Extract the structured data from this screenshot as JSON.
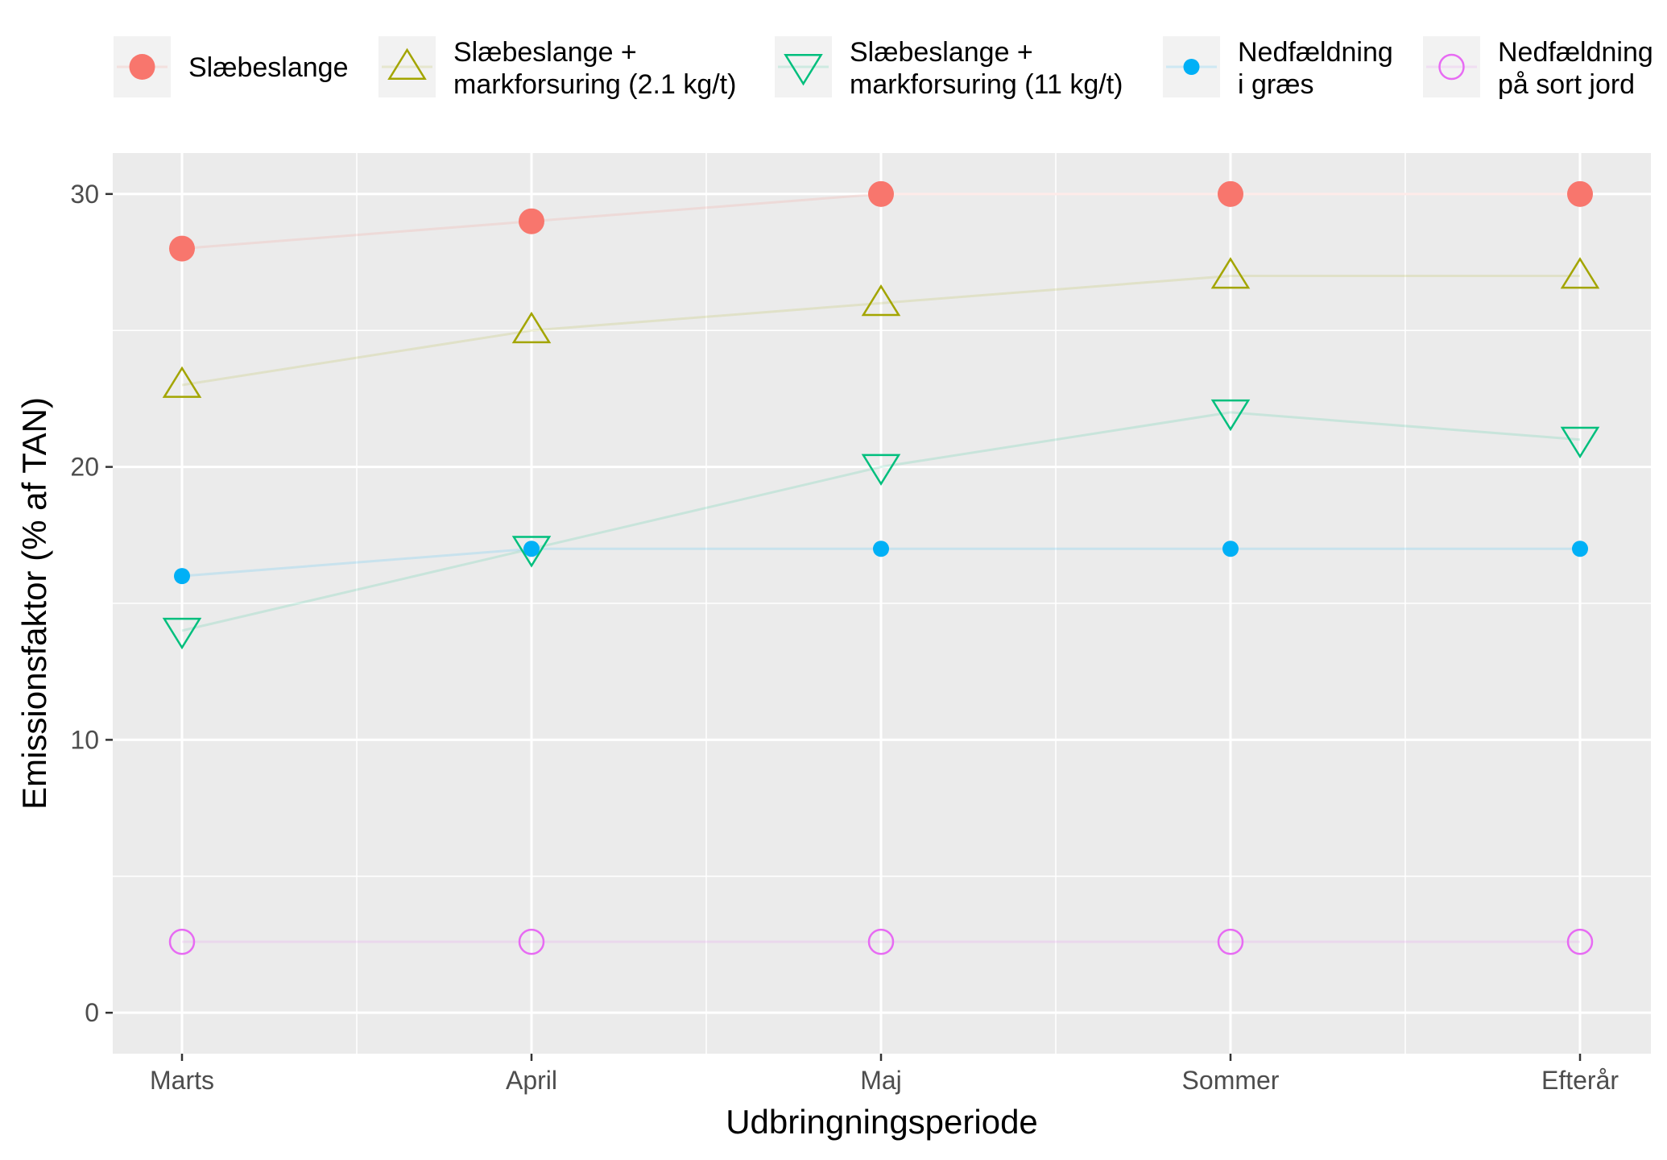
{
  "chart_data": {
    "type": "line",
    "categories": [
      "Marts",
      "April",
      "Maj",
      "Sommer",
      "Efterår"
    ],
    "xlabel": "Udbringningsperiode",
    "ylabel": "Emissionsfaktor (% af TAN)",
    "ylim": [
      -1.5,
      31.5
    ],
    "yticks": [
      0,
      10,
      20,
      30
    ],
    "grid": true,
    "legend_position": "top",
    "series": [
      {
        "name": "Slæbeslange",
        "name_lines": [
          "Slæbeslange"
        ],
        "color": "#F8766D",
        "marker": "filled-circle",
        "values": [
          28,
          29,
          30,
          30,
          30
        ]
      },
      {
        "name": "Slæbeslange + markforsuring (2.1 kg/t)",
        "name_lines": [
          "Slæbeslange +",
          "markforsuring (2.1 kg/t)"
        ],
        "color": "#A3A500",
        "marker": "open-triangle-up",
        "values": [
          23,
          25,
          26,
          27,
          27
        ]
      },
      {
        "name": "Slæbeslange + markforsuring (11 kg/t)",
        "name_lines": [
          "Slæbeslange +",
          "markforsuring (11 kg/t)"
        ],
        "color": "#00BF7D",
        "marker": "open-triangle-down",
        "values": [
          14,
          17,
          20,
          22,
          21
        ]
      },
      {
        "name": "Nedfældning i græs",
        "name_lines": [
          "Nedfældning",
          "i græs"
        ],
        "color": "#00B0F6",
        "marker": "small-filled-circle",
        "values": [
          16,
          17,
          17,
          17,
          17
        ]
      },
      {
        "name": "Nedfældning på sort jord",
        "name_lines": [
          "Nedfældning",
          "på sort jord"
        ],
        "color": "#E76BF3",
        "marker": "open-circle",
        "values": [
          2.6,
          2.6,
          2.6,
          2.6,
          2.6
        ]
      }
    ]
  }
}
